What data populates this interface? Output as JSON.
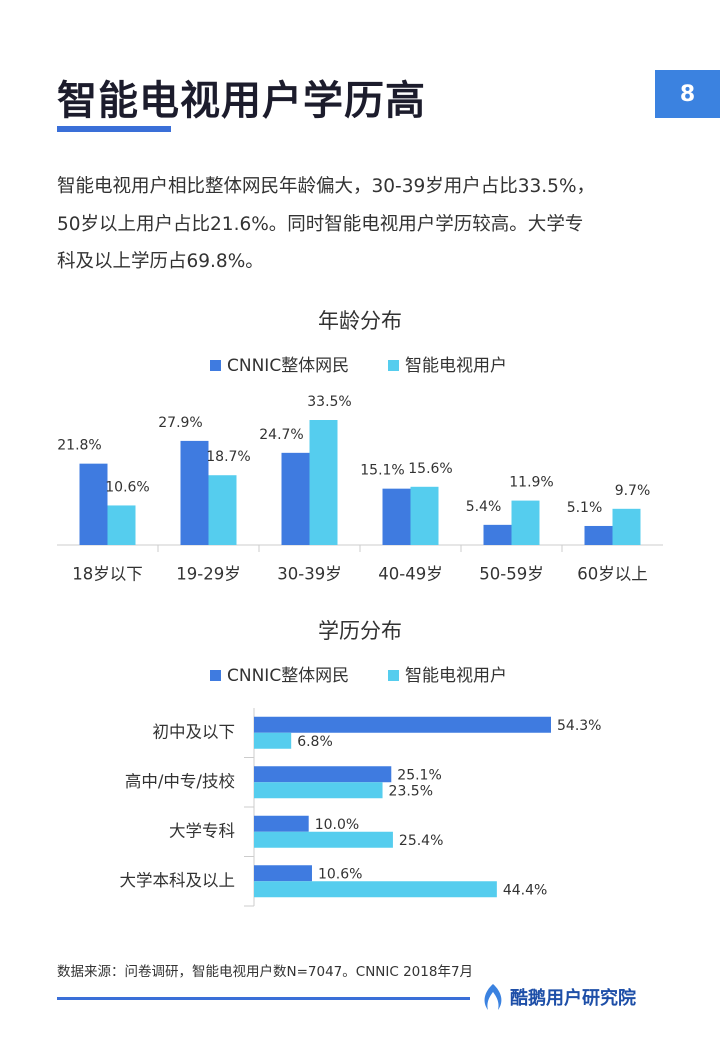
{
  "header": {
    "title": "智能电视用户学历高",
    "page_number": "8"
  },
  "paragraph": [
    "智能电视用户相比整体网民年龄偏大，30-39岁用户占比33.5%，",
    "50岁以上用户占比21.6%。同时智能电视用户学历较高。大学专",
    "科及以上学历占69.8%。"
  ],
  "chart_data": [
    {
      "type": "bar",
      "title": "年龄分布",
      "categories": [
        "18岁以下",
        "19-29岁",
        "30-39岁",
        "40-49岁",
        "50-59岁",
        "60岁以上"
      ],
      "series": [
        {
          "name": "CNNIC整体网民",
          "color": "#3f7be0",
          "values": [
            21.8,
            27.9,
            24.7,
            15.1,
            5.4,
            5.1
          ],
          "value_labels": [
            "21.8%",
            "27.9%",
            "24.7%",
            "15.1%",
            "5.4%",
            "5.1%"
          ]
        },
        {
          "name": "智能电视用户",
          "color": "#55cdee",
          "values": [
            10.6,
            18.7,
            33.5,
            15.6,
            11.9,
            9.7
          ],
          "value_labels": [
            "10.6%",
            "18.7%",
            "33.5%",
            "15.6%",
            "11.9%",
            "9.7%"
          ]
        }
      ]
    },
    {
      "type": "barh",
      "title": "学历分布",
      "categories": [
        "初中及以下",
        "高中/中专/技校",
        "大学专科",
        "大学本科及以上"
      ],
      "series": [
        {
          "name": "CNNIC整体网民",
          "color": "#3f7be0",
          "values": [
            54.3,
            25.1,
            10.0,
            10.6
          ],
          "value_labels": [
            "54.3%",
            "25.1%",
            "10.0%",
            "10.6%"
          ]
        },
        {
          "name": "智能电视用户",
          "color": "#55cdee",
          "values": [
            6.8,
            23.5,
            25.4,
            44.4
          ],
          "value_labels": [
            "6.8%",
            "23.5%",
            "25.4%",
            "44.4%"
          ]
        }
      ]
    }
  ],
  "footer": {
    "source": "数据来源：问卷调研，智能电视用户数N=7047。CNNIC 2018年7月",
    "brand": "酷鹅用户研究院"
  }
}
